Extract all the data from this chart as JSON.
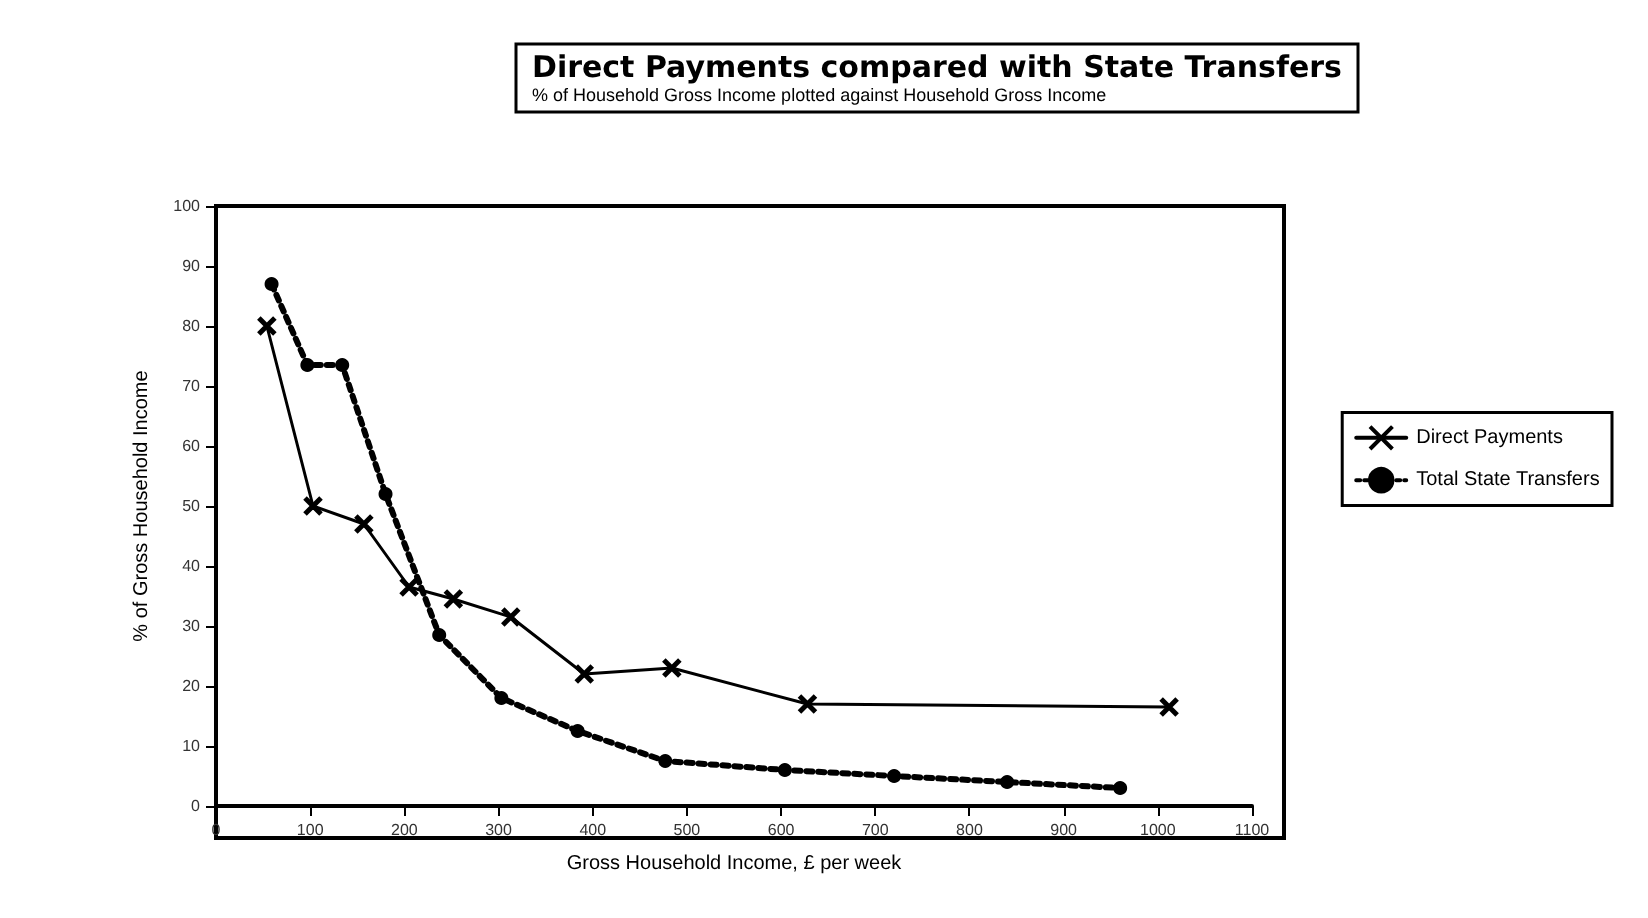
{
  "chart_data": {
    "type": "line",
    "title": "Direct Payments compared with State Transfers",
    "subtitle": "% of Household Gross Income plotted against Household Gross Income",
    "xlabel": "Gross Household Income, £ per week",
    "ylabel": "% of Gross Household Income",
    "xlim": [
      0,
      1100
    ],
    "xticks": [
      0,
      100,
      200,
      300,
      400,
      500,
      600,
      700,
      800,
      900,
      1000,
      1100
    ],
    "ylim": [
      0,
      100
    ],
    "yticks": [
      0,
      10,
      20,
      30,
      40,
      50,
      60,
      70,
      80,
      90,
      100
    ],
    "grid": false,
    "legend": "right",
    "series": [
      {
        "name": "Direct Payments",
        "color": "#000000",
        "marker": "cross",
        "line_style": "solid",
        "x": [
          54,
          103,
          157,
          205,
          252,
          313,
          391,
          484,
          628,
          1012
        ],
        "values": [
          80,
          50,
          47,
          36.5,
          34.5,
          31.5,
          22,
          23,
          17,
          16.5
        ]
      },
      {
        "name": "Total State Transfers",
        "color": "#000000",
        "marker": "circle",
        "line_style": "dotted",
        "x": [
          59,
          97,
          134,
          180,
          237,
          303,
          384,
          477,
          604,
          720,
          840,
          960
        ],
        "values": [
          87,
          73.5,
          73.5,
          52,
          28.5,
          18,
          12.5,
          7.5,
          6,
          5,
          4,
          3
        ]
      }
    ]
  }
}
